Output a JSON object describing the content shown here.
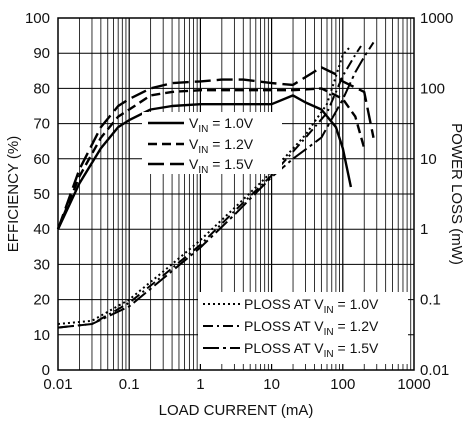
{
  "chart_data": {
    "type": "line",
    "title": "",
    "xlabel": "LOAD CURRENT (mA)",
    "ylabel_left": "EFFICIENCY (%)",
    "ylabel_right": "POWER LOSS (mW)",
    "x_scale": "log",
    "y_right_scale": "log",
    "xlim": [
      0.01,
      1000
    ],
    "ylim_left": [
      0,
      100
    ],
    "ylim_right": [
      0.01,
      1000
    ],
    "x_ticks": [
      "0.01",
      "0.1",
      "1",
      "10",
      "100",
      "1000"
    ],
    "y_left_ticks": [
      "0",
      "10",
      "20",
      "30",
      "40",
      "50",
      "60",
      "70",
      "80",
      "90",
      "100"
    ],
    "y_right_ticks": [
      "0.01",
      "0.1",
      "1",
      "10",
      "100",
      "1000"
    ],
    "grid": true,
    "legend_efficiency": {
      "placement": "center",
      "entries": [
        {
          "prefix": "V",
          "sub": "IN",
          "suffix": " = 1.0V"
        },
        {
          "prefix": "V",
          "sub": "IN",
          "suffix": " = 1.2V"
        },
        {
          "prefix": "V",
          "sub": "IN",
          "suffix": " = 1.5V"
        }
      ]
    },
    "legend_loss": {
      "placement": "bottom-right",
      "entries": [
        {
          "prefix": "PLOSS AT V",
          "sub": "IN",
          "suffix": " = 1.0V"
        },
        {
          "prefix": "PLOSS AT V",
          "sub": "IN",
          "suffix": " = 1.2V"
        },
        {
          "prefix": "PLOSS AT V",
          "sub": "IN",
          "suffix": " = 1.5V"
        }
      ]
    },
    "series": [
      {
        "axis": "left",
        "style": "solid",
        "x": [
          0.01,
          0.02,
          0.04,
          0.07,
          0.1,
          0.2,
          0.4,
          1,
          2,
          5,
          10,
          20,
          30,
          50,
          80,
          100,
          130
        ],
        "y": [
          40,
          53,
          63,
          69,
          71,
          74,
          75,
          75.5,
          75.5,
          75.5,
          75.5,
          78,
          76,
          74,
          69,
          63,
          52
        ]
      },
      {
        "axis": "left",
        "style": "dashed",
        "x": [
          0.01,
          0.02,
          0.04,
          0.07,
          0.1,
          0.2,
          0.4,
          1,
          2,
          5,
          10,
          20,
          50,
          80,
          100,
          150,
          200
        ],
        "y": [
          40,
          55,
          66,
          72,
          74,
          78,
          79,
          79.5,
          79.5,
          79.5,
          79.5,
          79.5,
          80,
          78,
          77,
          72,
          63
        ]
      },
      {
        "axis": "left",
        "style": "long-dash",
        "x": [
          0.01,
          0.02,
          0.04,
          0.07,
          0.1,
          0.2,
          0.4,
          1,
          2,
          4,
          10,
          20,
          50,
          80,
          100,
          200,
          270
        ],
        "y": [
          40,
          57,
          69,
          75,
          77,
          80,
          81.5,
          82,
          82.5,
          82.5,
          81.5,
          81,
          86,
          84,
          82,
          79,
          66
        ]
      },
      {
        "axis": "right",
        "style": "dotted",
        "x": [
          0.01,
          0.03,
          0.1,
          0.3,
          1,
          3,
          10,
          30,
          60,
          100,
          130
        ],
        "y": [
          0.045,
          0.05,
          0.1,
          0.25,
          0.7,
          2.0,
          6.5,
          22,
          60,
          300,
          400
        ]
      },
      {
        "axis": "right",
        "style": "dash-dot",
        "x": [
          0.01,
          0.03,
          0.1,
          0.3,
          1,
          3,
          10,
          30,
          60,
          100,
          150,
          180
        ],
        "y": [
          0.04,
          0.045,
          0.09,
          0.22,
          0.6,
          1.8,
          5.8,
          20,
          45,
          150,
          300,
          400
        ]
      },
      {
        "axis": "right",
        "style": "long-dash-dot",
        "x": [
          0.01,
          0.03,
          0.1,
          0.3,
          1,
          3,
          10,
          20,
          50,
          100,
          150,
          200,
          270
        ],
        "y": [
          0.04,
          0.045,
          0.08,
          0.2,
          0.55,
          1.6,
          5.5,
          10,
          20,
          70,
          170,
          280,
          450
        ]
      }
    ]
  }
}
